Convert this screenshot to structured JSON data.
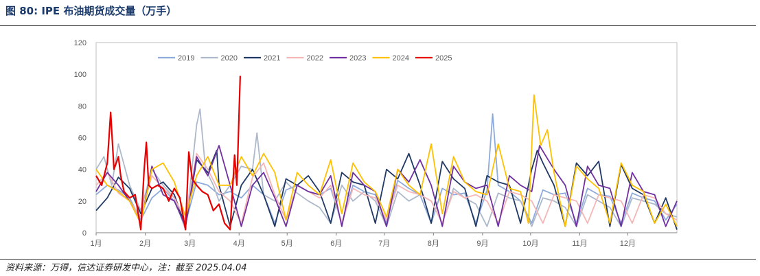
{
  "figure": {
    "title": "图 80:  IPE 布油期货成交量（万手）",
    "source": "资料来源：万得，信达证券研发中心，注：截至 2025.04.04"
  },
  "chart_data": {
    "type": "line",
    "title": "IPE 布油期货成交量（万手）",
    "unit": "万手",
    "xlabel": "",
    "ylabel": "",
    "ylim": [
      0,
      120
    ],
    "yticks": [
      0,
      20,
      40,
      60,
      80,
      100,
      120
    ],
    "x_unit": "week of year (0 = 1月初)",
    "xlim": [
      0,
      52
    ],
    "month_ticks": [
      {
        "label": "1月",
        "x": 0
      },
      {
        "label": "2月",
        "x": 4.4
      },
      {
        "label": "3月",
        "x": 8.4
      },
      {
        "label": "4月",
        "x": 12.8
      },
      {
        "label": "5月",
        "x": 17.1
      },
      {
        "label": "6月",
        "x": 21.5
      },
      {
        "label": "7月",
        "x": 25.8
      },
      {
        "label": "8月",
        "x": 30.2
      },
      {
        "label": "9月",
        "x": 34.6
      },
      {
        "label": "10月",
        "x": 38.9
      },
      {
        "label": "11月",
        "x": 43.3
      },
      {
        "label": "12月",
        "x": 47.6
      }
    ],
    "grid": false,
    "legend_position": "top",
    "series": [
      {
        "name": "2019",
        "color": "#8eaadb",
        "x": [
          0,
          1,
          2,
          3,
          4,
          5,
          6,
          7,
          8,
          9,
          10,
          11,
          12,
          13,
          14,
          15,
          16,
          17,
          18,
          19,
          20,
          21,
          22,
          23,
          24,
          25,
          26,
          27,
          28,
          29,
          30,
          31,
          32,
          33,
          34,
          35,
          35.5,
          36,
          37,
          38,
          39,
          40,
          41,
          42,
          43,
          44,
          45,
          46,
          47,
          48,
          49,
          50,
          51,
          52
        ],
        "y": [
          24,
          30,
          27,
          22,
          8,
          22,
          28,
          20,
          6,
          32,
          30,
          24,
          26,
          22,
          30,
          24,
          6,
          27,
          30,
          26,
          24,
          28,
          6,
          30,
          26,
          24,
          6,
          33,
          28,
          24,
          6,
          28,
          24,
          25,
          6,
          27,
          75,
          30,
          26,
          20,
          6,
          27,
          24,
          25,
          6,
          28,
          24,
          23,
          6,
          25,
          22,
          20,
          8,
          18
        ]
      },
      {
        "name": "2020",
        "color": "#adb9ca",
        "x": [
          0,
          0.7,
          1.4,
          2,
          3,
          4,
          5,
          6,
          7,
          8,
          9,
          9.3,
          9.8,
          10.5,
          11,
          12,
          13,
          14,
          14.4,
          15,
          16,
          17,
          18,
          19,
          20,
          21,
          22,
          23,
          24,
          25,
          26,
          27,
          28,
          29,
          30,
          31,
          32,
          33,
          34,
          35,
          36,
          37,
          38,
          39,
          40,
          41,
          42,
          43,
          44,
          45,
          46,
          47,
          48,
          49,
          50,
          51,
          52
        ],
        "y": [
          40,
          48,
          30,
          56,
          30,
          14,
          40,
          30,
          22,
          2,
          68,
          78,
          40,
          30,
          20,
          30,
          42,
          40,
          63,
          24,
          20,
          32,
          25,
          20,
          16,
          6,
          30,
          20,
          26,
          20,
          4,
          26,
          20,
          24,
          20,
          6,
          28,
          22,
          18,
          4,
          25,
          22,
          20,
          4,
          22,
          20,
          16,
          4,
          24,
          20,
          16,
          4,
          22,
          20,
          18,
          12,
          10
        ]
      },
      {
        "name": "2021",
        "color": "#1f3864",
        "x": [
          0,
          1,
          2,
          3,
          4,
          5,
          6,
          7,
          8,
          9,
          10,
          10.8,
          11,
          12,
          13,
          14,
          15,
          16,
          17,
          18,
          19,
          20,
          21,
          22,
          23,
          24,
          25,
          26,
          27,
          28,
          29,
          30,
          31,
          32,
          33,
          34,
          35,
          36,
          37,
          38,
          39,
          39.5,
          40,
          41,
          42,
          43,
          44,
          45,
          46,
          47,
          48,
          49,
          50,
          51,
          52
        ],
        "y": [
          14,
          22,
          35,
          28,
          12,
          28,
          32,
          24,
          4,
          46,
          38,
          52,
          30,
          4,
          30,
          40,
          24,
          4,
          34,
          30,
          36,
          26,
          6,
          38,
          32,
          30,
          6,
          40,
          34,
          50,
          30,
          6,
          45,
          34,
          28,
          4,
          36,
          32,
          30,
          6,
          40,
          52,
          44,
          30,
          4,
          44,
          36,
          45,
          4,
          43,
          28,
          24,
          6,
          22,
          2
        ]
      },
      {
        "name": "2022",
        "color": "#f4b6b6",
        "x": [
          0,
          1,
          2,
          3,
          4,
          5,
          6,
          7,
          8,
          9,
          10,
          11,
          12,
          13,
          14,
          15,
          16,
          17,
          18,
          19,
          20,
          21,
          22,
          23,
          24,
          25,
          26,
          27,
          28,
          29,
          30,
          31,
          32,
          33,
          34,
          35,
          36,
          37,
          38,
          39,
          40,
          41,
          42,
          43,
          44,
          45,
          46,
          47,
          48,
          49,
          50,
          51,
          52
        ],
        "y": [
          30,
          38,
          25,
          20,
          10,
          36,
          28,
          22,
          8,
          50,
          40,
          26,
          20,
          6,
          35,
          44,
          24,
          8,
          30,
          26,
          22,
          30,
          6,
          28,
          24,
          22,
          8,
          30,
          26,
          24,
          20,
          6,
          26,
          22,
          24,
          20,
          6,
          26,
          24,
          20,
          6,
          24,
          22,
          20,
          6,
          24,
          22,
          20,
          6,
          24,
          22,
          12,
          8
        ]
      },
      {
        "name": "2023",
        "color": "#7030a0",
        "x": [
          0,
          1,
          2,
          3,
          4,
          5,
          6,
          7,
          8,
          9,
          10,
          11,
          12,
          13,
          14,
          15,
          16,
          17,
          18,
          19,
          20,
          21,
          22,
          23,
          24,
          25,
          26,
          27,
          28,
          29,
          30,
          31,
          32,
          33,
          34,
          35,
          36,
          37,
          38,
          39,
          39.7,
          40.3,
          41,
          42,
          43,
          44,
          45,
          46,
          47,
          48,
          49,
          50,
          51,
          52
        ],
        "y": [
          26,
          38,
          30,
          20,
          6,
          42,
          24,
          20,
          4,
          48,
          36,
          55,
          30,
          4,
          30,
          38,
          22,
          4,
          30,
          26,
          24,
          36,
          4,
          38,
          30,
          26,
          4,
          40,
          32,
          46,
          30,
          4,
          42,
          32,
          28,
          30,
          4,
          36,
          30,
          26,
          55,
          48,
          40,
          30,
          4,
          42,
          30,
          28,
          4,
          38,
          26,
          24,
          4,
          20
        ]
      },
      {
        "name": "2024",
        "color": "#ffc000",
        "x": [
          0,
          1,
          2,
          3,
          4,
          5,
          6,
          7,
          8,
          9,
          10,
          11,
          12,
          13,
          14,
          15,
          16,
          17,
          18,
          19,
          20,
          21,
          22,
          23,
          24,
          25,
          26,
          27,
          28,
          29,
          30,
          31,
          32,
          33,
          34,
          35,
          36,
          37,
          38,
          38.7,
          39.2,
          39.8,
          40.4,
          41,
          42,
          43,
          44,
          45,
          46,
          47,
          48,
          49,
          50,
          51,
          52
        ],
        "y": [
          40,
          30,
          26,
          20,
          6,
          40,
          44,
          32,
          10,
          36,
          48,
          30,
          30,
          48,
          36,
          50,
          38,
          8,
          38,
          30,
          24,
          46,
          12,
          44,
          32,
          26,
          10,
          40,
          30,
          24,
          56,
          12,
          48,
          32,
          26,
          24,
          56,
          28,
          26,
          6,
          87,
          55,
          65,
          38,
          4,
          42,
          34,
          28,
          6,
          44,
          30,
          26,
          6,
          18,
          4
        ]
      },
      {
        "name": "2025",
        "color": "#e60000",
        "x": [
          0,
          0.5,
          1,
          1.3,
          1.6,
          2,
          2.2,
          2.5,
          3,
          3.5,
          4,
          4.3,
          4.5,
          4.7,
          5,
          5.5,
          6,
          6.5,
          7,
          7.5,
          8,
          8.3,
          8.6,
          9,
          9.5,
          10,
          10.5,
          11,
          11.5,
          12,
          12.4,
          12.6,
          12.9
        ],
        "y": [
          36,
          30,
          44,
          76,
          40,
          48,
          36,
          26,
          22,
          24,
          2,
          40,
          57,
          30,
          28,
          30,
          28,
          20,
          28,
          22,
          2,
          51,
          34,
          30,
          26,
          24,
          14,
          18,
          6,
          2,
          49,
          30,
          99
        ]
      }
    ]
  }
}
